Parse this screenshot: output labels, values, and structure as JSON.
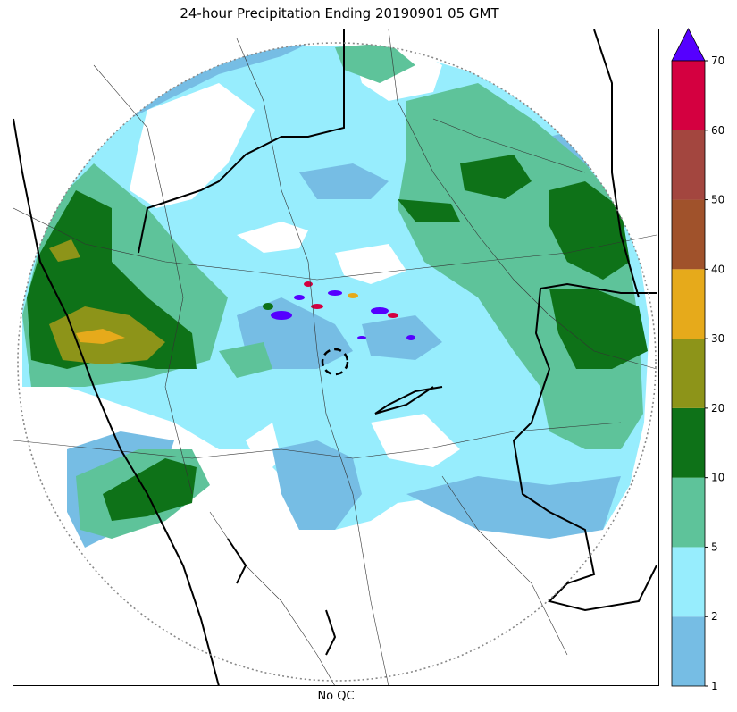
{
  "title": "24-hour Precipitation Ending 20190901 05 GMT",
  "xlabel": "No QC",
  "colorbar": {
    "levels": [
      "1",
      "2",
      "5",
      "10",
      "20",
      "30",
      "40",
      "50",
      "60",
      "70"
    ],
    "colors": [
      "#76bde4",
      "#97edfd",
      "#5ec39a",
      "#0e7218",
      "#8d9419",
      "#e6aa1b",
      "#a0522b",
      "#a3463f",
      "#d40040"
    ],
    "extend_color": "#5500ff"
  },
  "palette": {
    "p1": "#76bde4",
    "p2": "#97edfd",
    "p5": "#5ec39a",
    "p10": "#0e7218",
    "p20": "#8d9419",
    "p30": "#e6aa1b",
    "p70": "#5500ff"
  }
}
